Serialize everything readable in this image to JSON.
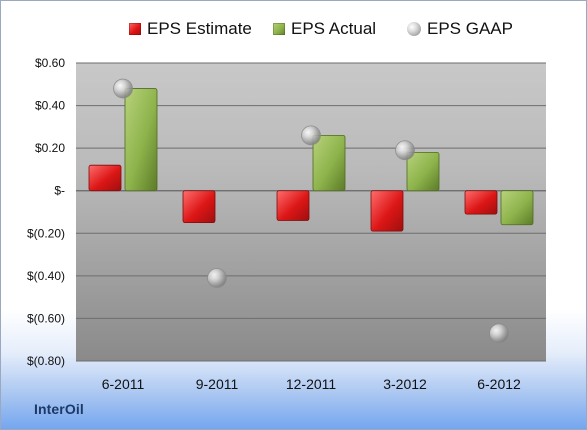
{
  "window": {
    "company_name": "InterOil"
  },
  "chart_data": {
    "type": "bar",
    "title": "",
    "xlabel": "",
    "ylabel": "",
    "ylim": [
      -0.8,
      0.6
    ],
    "grid": true,
    "legend_position": "top",
    "categories": [
      "6-2011",
      "9-2011",
      "12-2011",
      "3-2012",
      "6-2012"
    ],
    "y_tick_values": [
      0.6,
      0.4,
      0.2,
      0,
      -0.2,
      -0.4,
      -0.6,
      -0.8
    ],
    "y_tick_labels": [
      "$0.60",
      "$0.40",
      "$0.20",
      "$-",
      "$(0.20)",
      "$(0.40)",
      "$(0.60)",
      "$(0.80)"
    ],
    "series": [
      {
        "name": "EPS Estimate",
        "type": "bar",
        "color": "#d91a1a",
        "values": [
          0.12,
          -0.15,
          -0.14,
          -0.19,
          -0.11
        ]
      },
      {
        "name": "EPS Actual",
        "type": "bar",
        "color": "#8db34b",
        "values": [
          0.48,
          null,
          0.26,
          0.18,
          -0.16
        ]
      },
      {
        "name": "EPS GAAP",
        "type": "scatter",
        "color": "#a6a6a6",
        "values": [
          0.48,
          -0.41,
          0.26,
          0.19,
          -0.67
        ]
      }
    ],
    "legend": [
      "EPS Estimate",
      "EPS Actual",
      "EPS GAAP"
    ]
  }
}
